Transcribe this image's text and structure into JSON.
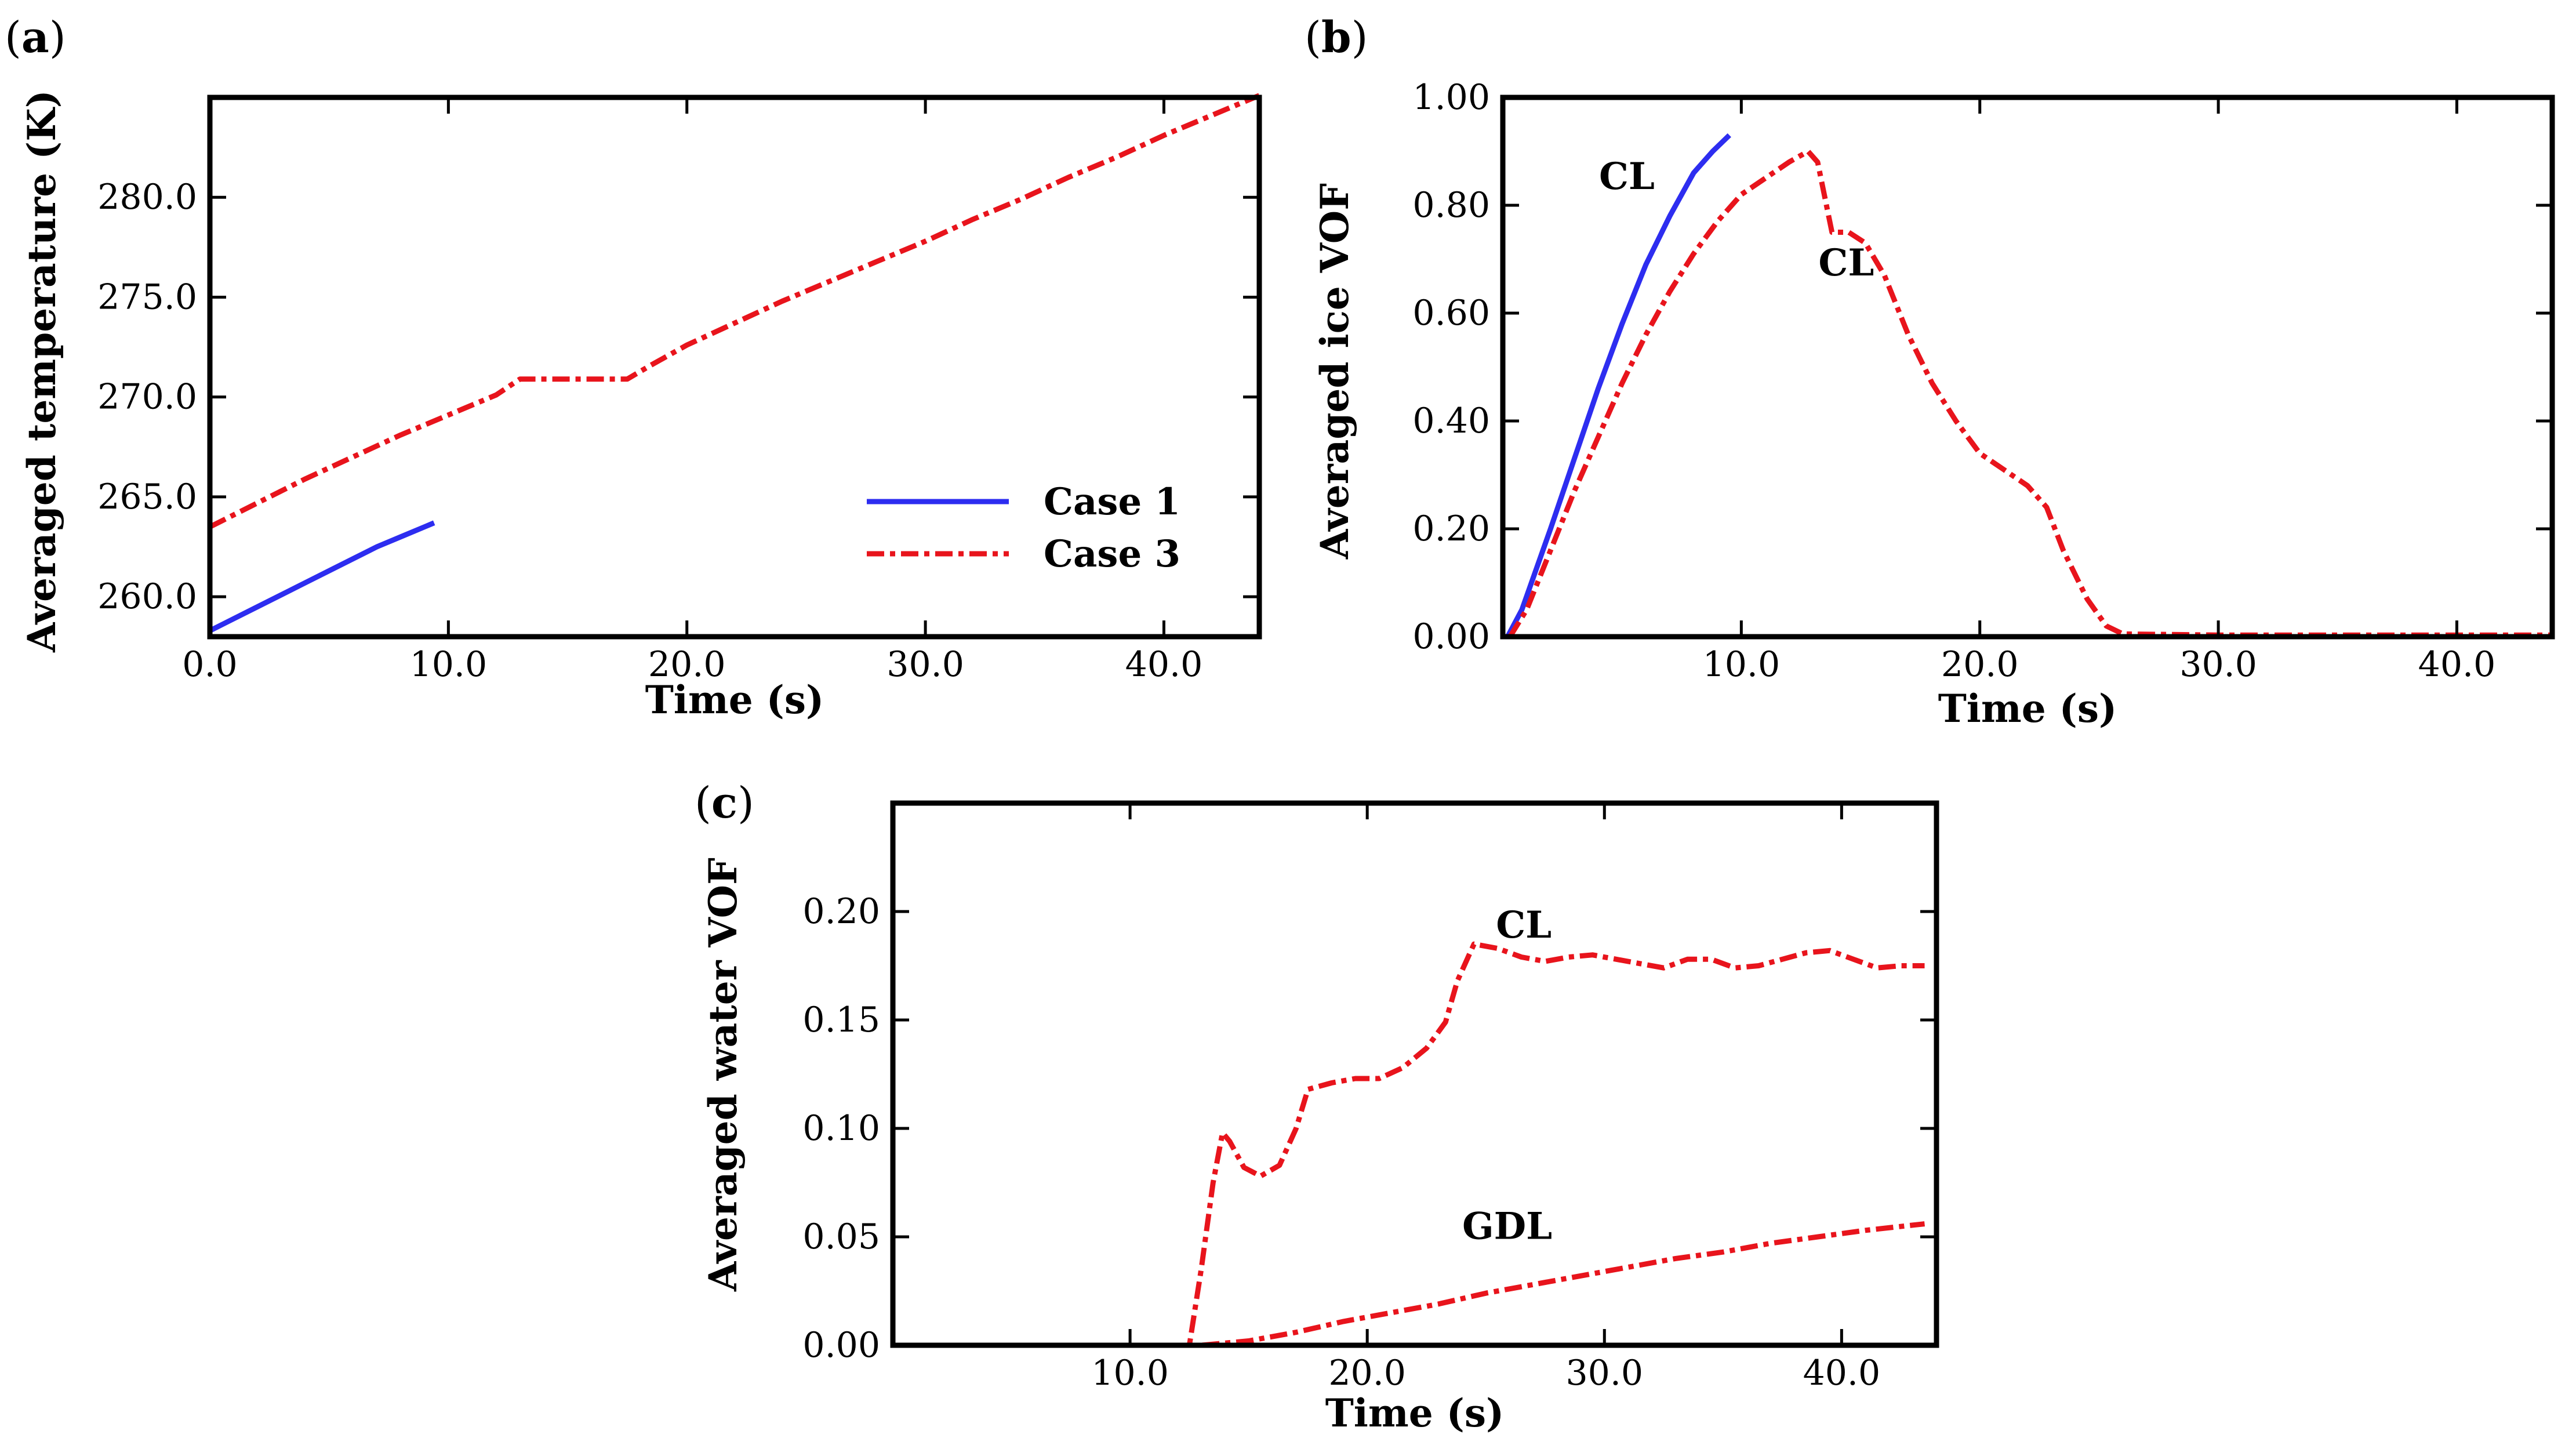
{
  "chart_data": [
    {
      "panel_label": "(a)",
      "panel_letter": "a",
      "type": "line",
      "title": "",
      "xlabel": "Time (s)",
      "ylabel": "Averaged temperature (K)",
      "xlim": [
        0,
        44
      ],
      "ylim": [
        258,
        285
      ],
      "xticks": [
        0,
        10,
        20,
        30,
        40
      ],
      "xtick_labels": [
        "0.0",
        "10.0",
        "20.0",
        "30.0",
        "40.0"
      ],
      "yticks": [
        260,
        265,
        270,
        275,
        280
      ],
      "ytick_labels": [
        "260.0",
        "265.0",
        "270.0",
        "275.0",
        "280.0"
      ],
      "legend_position": "bottom-right",
      "series": [
        {
          "name": "Case 1",
          "color": "#2d2df0",
          "style": "solid",
          "x": [
            0,
            1,
            2,
            3,
            4,
            5,
            6,
            7,
            8,
            9,
            9.4
          ],
          "y": [
            258.3,
            258.9,
            259.5,
            260.1,
            260.7,
            261.3,
            261.9,
            262.5,
            263.0,
            263.5,
            263.7
          ]
        },
        {
          "name": "Case 3",
          "color": "#e8141c",
          "style": "dashdot",
          "x": [
            0,
            2,
            4,
            6,
            8,
            10,
            12,
            13,
            14,
            16,
            17.5,
            18.5,
            20,
            22,
            24,
            26,
            28,
            30,
            32,
            34,
            36,
            38,
            40,
            42,
            44
          ],
          "y": [
            263.5,
            264.7,
            265.9,
            267.0,
            268.1,
            269.1,
            270.1,
            270.9,
            270.9,
            270.9,
            270.9,
            271.6,
            272.6,
            273.7,
            274.8,
            275.8,
            276.8,
            277.8,
            278.9,
            279.9,
            281.0,
            282.0,
            283.1,
            284.1,
            285.1
          ]
        }
      ],
      "annotations": []
    },
    {
      "panel_label": "(b)",
      "panel_letter": "b",
      "type": "line",
      "title": "",
      "xlabel": "Time (s)",
      "ylabel": "Averaged ice VOF",
      "xlim": [
        0,
        44
      ],
      "ylim": [
        0,
        1
      ],
      "xticks": [
        10,
        20,
        30,
        40
      ],
      "xtick_labels": [
        "10.0",
        "20.0",
        "30.0",
        "40.0"
      ],
      "yticks": [
        0,
        0.2,
        0.4,
        0.6,
        0.8,
        1.0
      ],
      "ytick_labels": [
        "0.00",
        "0.20",
        "0.40",
        "0.60",
        "0.80",
        "1.00"
      ],
      "series": [
        {
          "name": "Case 1 CL",
          "color": "#2d2df0",
          "style": "solid",
          "x": [
            0.2,
            0.8,
            2,
            3,
            4,
            5,
            6,
            7,
            8,
            8.8,
            9.5
          ],
          "y": [
            0,
            0.05,
            0.2,
            0.33,
            0.46,
            0.58,
            0.69,
            0.78,
            0.86,
            0.9,
            0.93
          ]
        },
        {
          "name": "Case 3 CL",
          "color": "#e8141c",
          "style": "dashdot",
          "x": [
            0.3,
            1,
            2,
            3,
            4,
            5,
            6,
            7,
            8,
            9,
            10,
            11,
            12,
            12.8,
            13.2,
            13.8,
            14.5,
            15.2,
            16,
            17,
            18,
            19,
            20,
            21,
            22,
            22.8,
            23.5,
            24.5,
            25.3,
            26,
            30,
            35,
            40,
            44
          ],
          "y": [
            0,
            0.05,
            0.16,
            0.27,
            0.37,
            0.47,
            0.56,
            0.64,
            0.71,
            0.77,
            0.82,
            0.85,
            0.88,
            0.9,
            0.88,
            0.75,
            0.75,
            0.73,
            0.67,
            0.56,
            0.47,
            0.4,
            0.34,
            0.31,
            0.28,
            0.24,
            0.16,
            0.07,
            0.02,
            0.005,
            0.003,
            0.003,
            0.003,
            0.003
          ]
        }
      ],
      "annotations": [
        {
          "text": "CL",
          "x": 5.2,
          "y": 0.83
        },
        {
          "text": "CL",
          "x": 14.4,
          "y": 0.67
        }
      ]
    },
    {
      "panel_label": "(c)",
      "panel_letter": "c",
      "type": "line",
      "title": "",
      "xlabel": "Time (s)",
      "ylabel": "Averaged water VOF",
      "xlim": [
        0,
        44
      ],
      "ylim": [
        0,
        0.25
      ],
      "xticks": [
        10,
        20,
        30,
        40
      ],
      "xtick_labels": [
        "10.0",
        "20.0",
        "30.0",
        "40.0"
      ],
      "yticks": [
        0,
        0.05,
        0.1,
        0.15,
        0.2
      ],
      "ytick_labels": [
        "0.00",
        "0.05",
        "0.10",
        "0.15",
        "0.20"
      ],
      "series": [
        {
          "name": "Case 3 CL",
          "color": "#e8141c",
          "style": "dashdot",
          "x": [
            1.5,
            5,
            10,
            12.5,
            13,
            13.5,
            13.9,
            14.2,
            14.8,
            15.5,
            16.3,
            17,
            17.5,
            18.5,
            19.5,
            20.5,
            21.5,
            22.5,
            23.3,
            23.8,
            24.5,
            25.5,
            26.5,
            27.5,
            28.5,
            29.5,
            30.5,
            31.5,
            32.5,
            33.5,
            34.5,
            35.5,
            36.5,
            37.5,
            38.5,
            39.5,
            40.5,
            41.5,
            42.5,
            43.5
          ],
          "y": [
            0,
            0,
            0,
            0,
            0.035,
            0.075,
            0.098,
            0.094,
            0.082,
            0.078,
            0.083,
            0.1,
            0.118,
            0.121,
            0.123,
            0.123,
            0.128,
            0.137,
            0.149,
            0.168,
            0.185,
            0.183,
            0.179,
            0.177,
            0.179,
            0.18,
            0.178,
            0.176,
            0.174,
            0.178,
            0.178,
            0.174,
            0.175,
            0.178,
            0.181,
            0.182,
            0.178,
            0.174,
            0.175,
            0.175
          ]
        },
        {
          "name": "Case 3 GDL",
          "color": "#e8141c",
          "style": "dashdot",
          "x": [
            1.5,
            10,
            13,
            15,
            17,
            19,
            21,
            23,
            25,
            27,
            29,
            31,
            33,
            35,
            37,
            39,
            41,
            43.5
          ],
          "y": [
            0,
            0,
            0,
            0.002,
            0.006,
            0.011,
            0.015,
            0.019,
            0.024,
            0.028,
            0.032,
            0.036,
            0.04,
            0.043,
            0.047,
            0.05,
            0.053,
            0.056
          ]
        }
      ],
      "annotations": [
        {
          "text": "CL",
          "x": 26.6,
          "y": 0.188
        },
        {
          "text": "GDL",
          "x": 25.9,
          "y": 0.049
        }
      ]
    }
  ]
}
